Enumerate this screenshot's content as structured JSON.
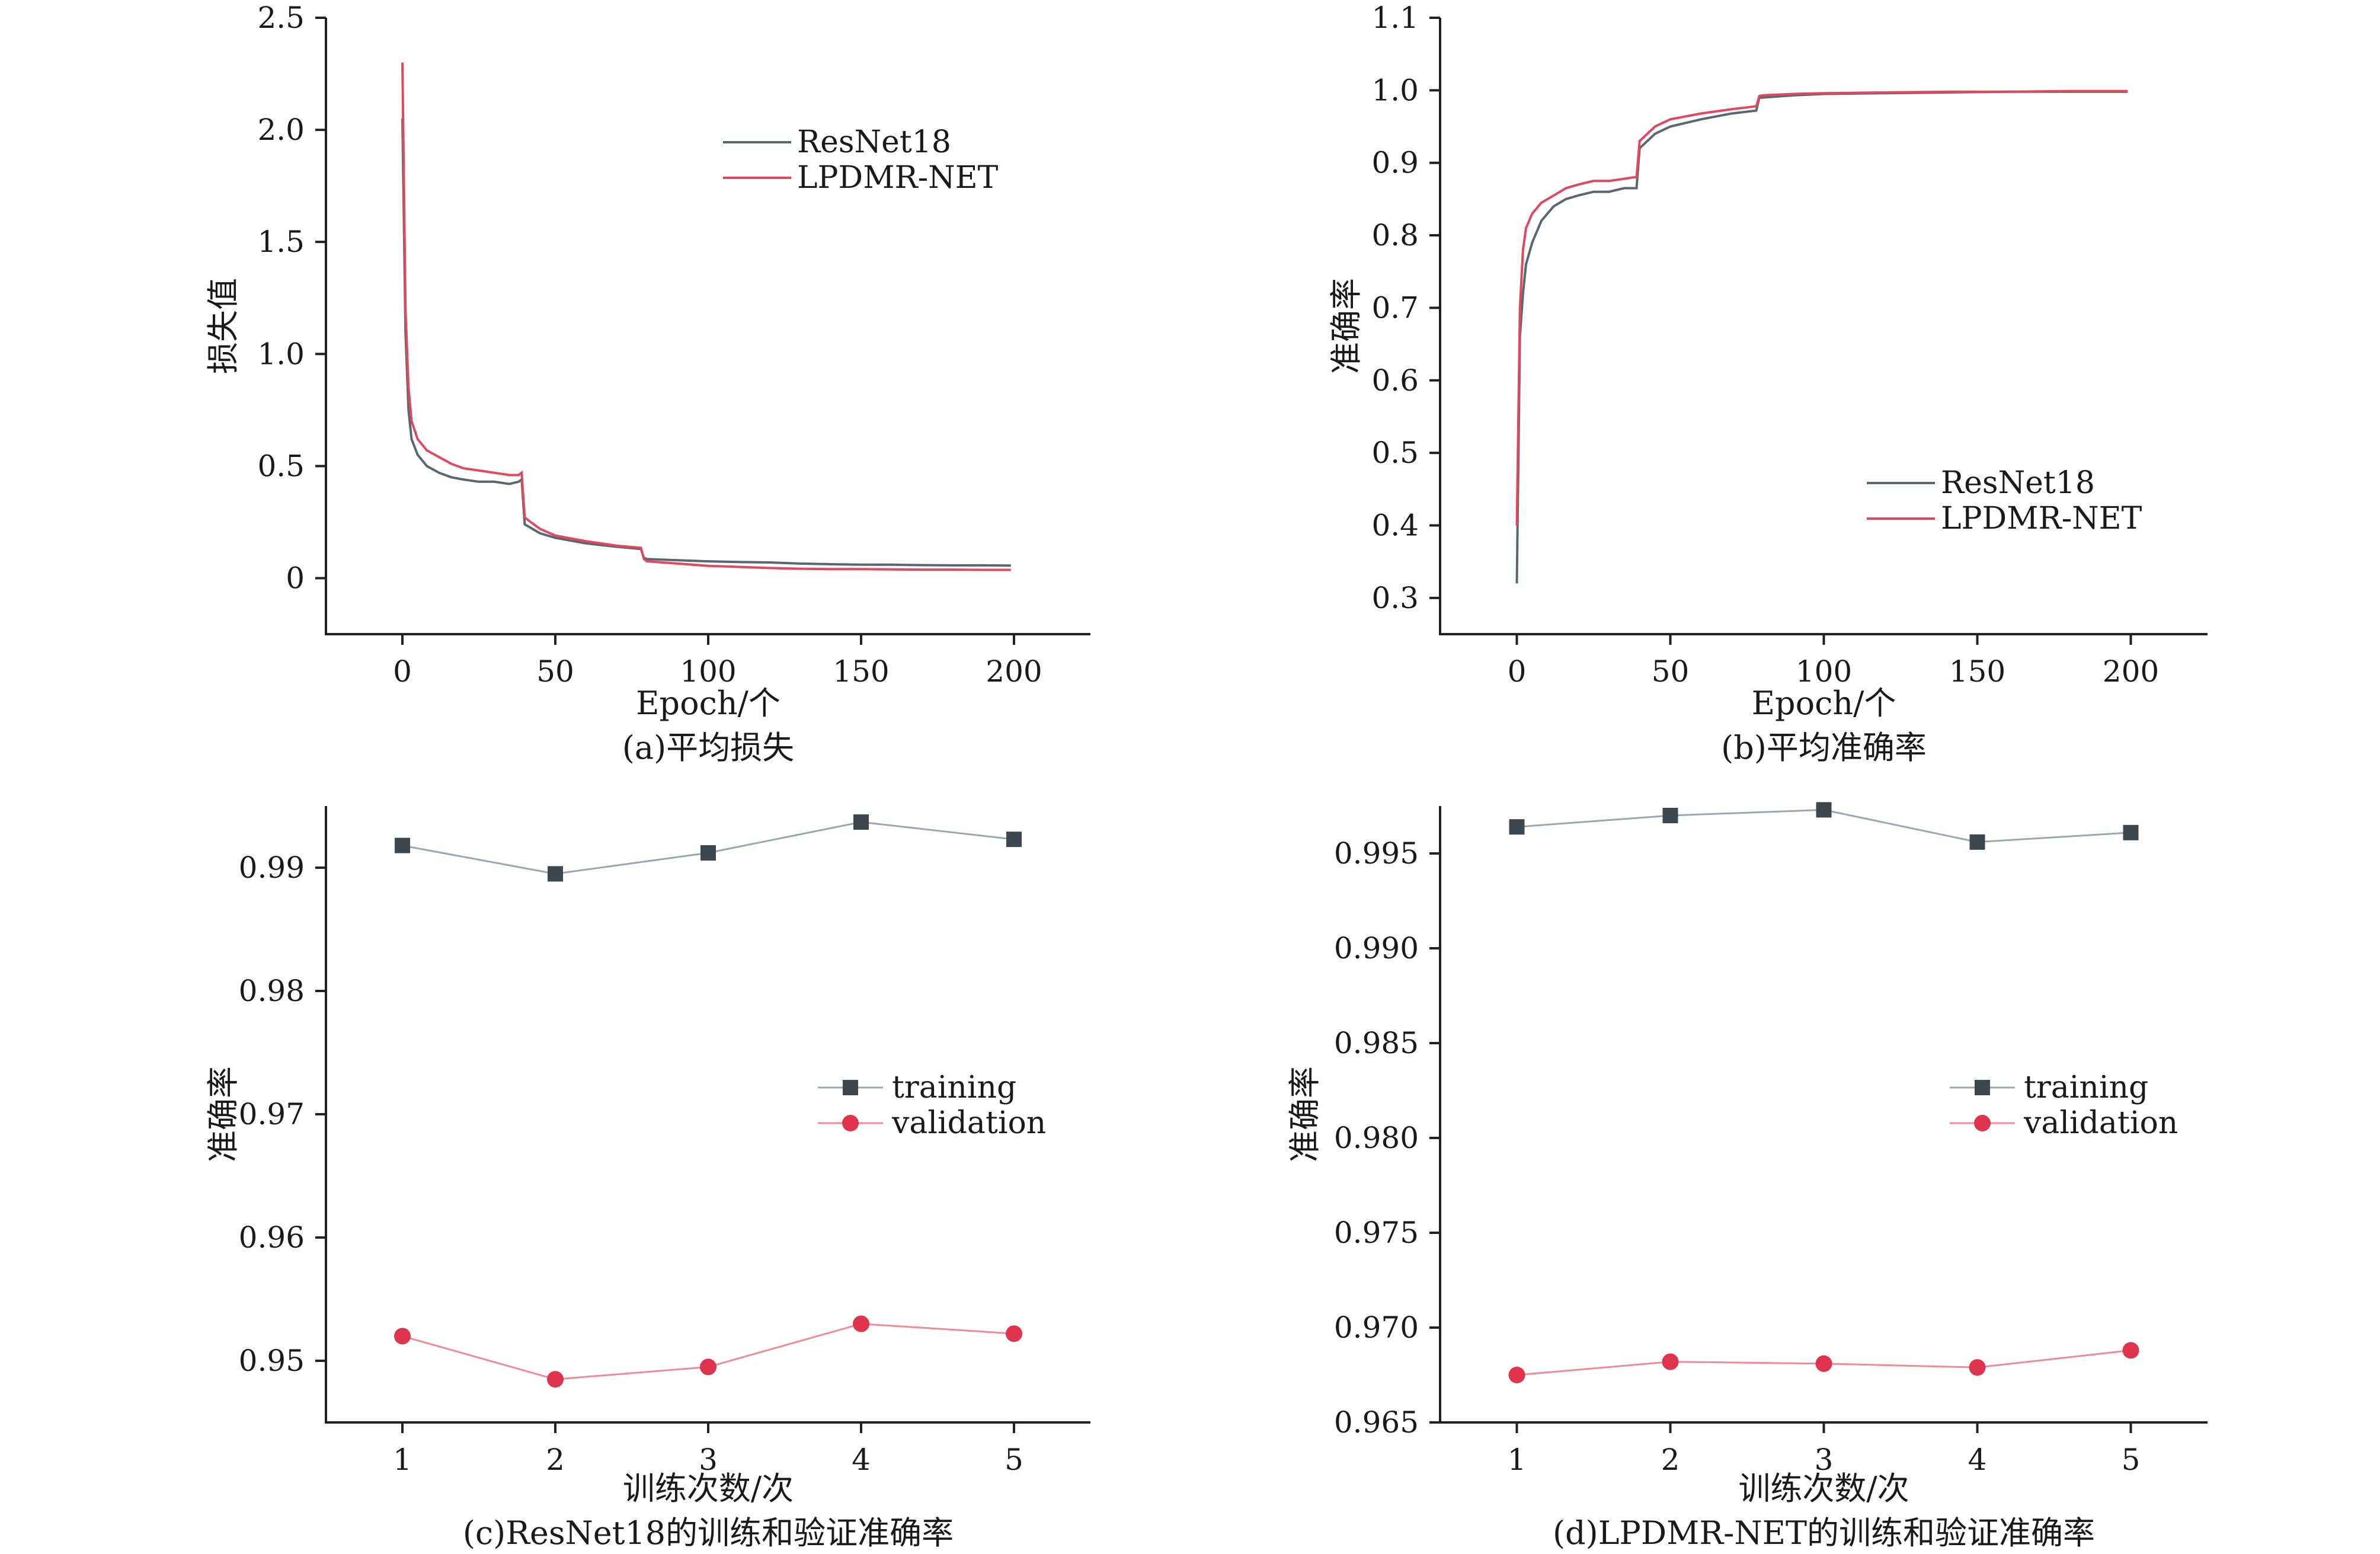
{
  "colors": {
    "resnet": "#5a6670",
    "lpdmr": "#e0485f",
    "training": "#3d474f",
    "validation": "#e0334d",
    "axis": "#222222"
  },
  "chart_data": [
    {
      "id": "a",
      "type": "line",
      "caption": "(a)平均损失",
      "xlabel": "Epoch/个",
      "ylabel": "损失值",
      "xlim": [
        -25,
        225
      ],
      "ylim": [
        -0.25,
        2.5
      ],
      "xticks": [
        "0",
        "50",
        "100",
        "150",
        "200"
      ],
      "xtick_values": [
        0,
        50,
        100,
        150,
        200
      ],
      "yticks": [
        "0",
        "0.5",
        "1.0",
        "1.5",
        "2.0",
        "2.5"
      ],
      "ytick_values": [
        0,
        0.5,
        1.0,
        1.5,
        2.0,
        2.5
      ],
      "legend": [
        "ResNet18",
        "LPDMR-NET"
      ],
      "series": [
        {
          "name": "ResNet18",
          "color_key": "resnet",
          "x": [
            0,
            1,
            2,
            3,
            5,
            8,
            12,
            16,
            20,
            25,
            30,
            35,
            38,
            39,
            40,
            45,
            50,
            60,
            70,
            78,
            79,
            80,
            90,
            100,
            110,
            120,
            130,
            140,
            150,
            160,
            170,
            180,
            190,
            199
          ],
          "y": [
            2.05,
            1.1,
            0.75,
            0.62,
            0.55,
            0.5,
            0.47,
            0.45,
            0.44,
            0.43,
            0.43,
            0.42,
            0.43,
            0.44,
            0.24,
            0.2,
            0.18,
            0.155,
            0.14,
            0.13,
            0.09,
            0.085,
            0.08,
            0.075,
            0.072,
            0.07,
            0.065,
            0.062,
            0.06,
            0.06,
            0.058,
            0.057,
            0.057,
            0.056
          ]
        },
        {
          "name": "LPDMR-NET",
          "color_key": "lpdmr",
          "x": [
            0,
            1,
            2,
            3,
            5,
            8,
            12,
            16,
            20,
            25,
            30,
            35,
            38,
            39,
            40,
            45,
            50,
            60,
            70,
            78,
            79,
            80,
            90,
            100,
            110,
            120,
            130,
            140,
            150,
            160,
            170,
            180,
            190,
            199
          ],
          "y": [
            2.3,
            1.2,
            0.85,
            0.7,
            0.62,
            0.57,
            0.54,
            0.51,
            0.49,
            0.48,
            0.47,
            0.46,
            0.46,
            0.47,
            0.27,
            0.22,
            0.19,
            0.165,
            0.145,
            0.135,
            0.085,
            0.075,
            0.065,
            0.055,
            0.05,
            0.045,
            0.042,
            0.04,
            0.04,
            0.039,
            0.038,
            0.038,
            0.037,
            0.037
          ]
        }
      ]
    },
    {
      "id": "b",
      "type": "line",
      "caption": "(b)平均准确率",
      "xlabel": "Epoch/个",
      "ylabel": "准确率",
      "xlim": [
        -25,
        225
      ],
      "ylim": [
        0.25,
        1.1
      ],
      "xticks": [
        "0",
        "50",
        "100",
        "150",
        "200"
      ],
      "xtick_values": [
        0,
        50,
        100,
        150,
        200
      ],
      "yticks": [
        "0.3",
        "0.4",
        "0.5",
        "0.6",
        "0.7",
        "0.8",
        "0.9",
        "1.0",
        "1.1"
      ],
      "ytick_values": [
        0.3,
        0.4,
        0.5,
        0.6,
        0.7,
        0.8,
        0.9,
        1.0,
        1.1
      ],
      "legend": [
        "ResNet18",
        "LPDMR-NET"
      ],
      "series": [
        {
          "name": "ResNet18",
          "color_key": "resnet",
          "x": [
            0,
            1,
            2,
            3,
            5,
            8,
            12,
            16,
            20,
            25,
            30,
            35,
            38,
            39,
            40,
            45,
            50,
            60,
            70,
            78,
            79,
            80,
            90,
            100,
            120,
            140,
            160,
            180,
            199
          ],
          "y": [
            0.32,
            0.66,
            0.72,
            0.76,
            0.79,
            0.82,
            0.84,
            0.85,
            0.855,
            0.86,
            0.86,
            0.865,
            0.865,
            0.865,
            0.92,
            0.94,
            0.95,
            0.96,
            0.968,
            0.972,
            0.99,
            0.99,
            0.993,
            0.995,
            0.996,
            0.997,
            0.998,
            0.998,
            0.998
          ]
        },
        {
          "name": "LPDMR-NET",
          "color_key": "lpdmr",
          "x": [
            0,
            1,
            2,
            3,
            5,
            8,
            12,
            16,
            20,
            25,
            30,
            35,
            38,
            39,
            40,
            45,
            50,
            60,
            70,
            78,
            79,
            80,
            90,
            100,
            120,
            140,
            160,
            180,
            199
          ],
          "y": [
            0.4,
            0.7,
            0.78,
            0.81,
            0.83,
            0.845,
            0.855,
            0.865,
            0.87,
            0.875,
            0.875,
            0.878,
            0.88,
            0.88,
            0.93,
            0.95,
            0.96,
            0.968,
            0.974,
            0.978,
            0.992,
            0.993,
            0.995,
            0.996,
            0.997,
            0.998,
            0.998,
            0.999,
            0.999
          ]
        }
      ]
    },
    {
      "id": "c",
      "type": "line",
      "caption": "(c)ResNet18的训练和验证准确率",
      "xlabel": "训练次数/次",
      "ylabel": "准确率",
      "xlim": [
        0.5,
        5.5
      ],
      "ylim": [
        0.945,
        0.995
      ],
      "xticks": [
        "1",
        "2",
        "3",
        "4",
        "5"
      ],
      "xtick_values": [
        1,
        2,
        3,
        4,
        5
      ],
      "yticks": [
        "0.95",
        "0.96",
        "0.97",
        "0.98",
        "0.99"
      ],
      "ytick_values": [
        0.95,
        0.96,
        0.97,
        0.98,
        0.99
      ],
      "legend": [
        "training",
        "validation"
      ],
      "series": [
        {
          "name": "training",
          "color_key": "training",
          "marker": "square",
          "x": [
            1,
            2,
            3,
            4,
            5
          ],
          "y": [
            0.9918,
            0.9895,
            0.9912,
            0.9937,
            0.9923
          ]
        },
        {
          "name": "validation",
          "color_key": "validation",
          "marker": "circle",
          "x": [
            1,
            2,
            3,
            4,
            5
          ],
          "y": [
            0.952,
            0.9485,
            0.9495,
            0.953,
            0.9522
          ]
        }
      ]
    },
    {
      "id": "d",
      "type": "line",
      "caption": "(d)LPDMR-NET的训练和验证准确率",
      "xlabel": "训练次数/次",
      "ylabel": "准确率",
      "xlim": [
        0.5,
        5.5
      ],
      "ylim": [
        0.965,
        0.9975
      ],
      "xticks": [
        "1",
        "2",
        "3",
        "4",
        "5"
      ],
      "xtick_values": [
        1,
        2,
        3,
        4,
        5
      ],
      "yticks": [
        "0.965",
        "0.970",
        "0.975",
        "0.980",
        "0.985",
        "0.990",
        "0.995"
      ],
      "ytick_values": [
        0.965,
        0.97,
        0.975,
        0.98,
        0.985,
        0.99,
        0.995
      ],
      "legend": [
        "training",
        "validation"
      ],
      "series": [
        {
          "name": "training",
          "color_key": "training",
          "marker": "square",
          "x": [
            1,
            2,
            3,
            4,
            5
          ],
          "y": [
            0.9964,
            0.997,
            0.9973,
            0.9956,
            0.9961
          ]
        },
        {
          "name": "validation",
          "color_key": "validation",
          "marker": "circle",
          "x": [
            1,
            2,
            3,
            4,
            5
          ],
          "y": [
            0.9675,
            0.9682,
            0.9681,
            0.9679,
            0.9688
          ]
        }
      ]
    }
  ]
}
